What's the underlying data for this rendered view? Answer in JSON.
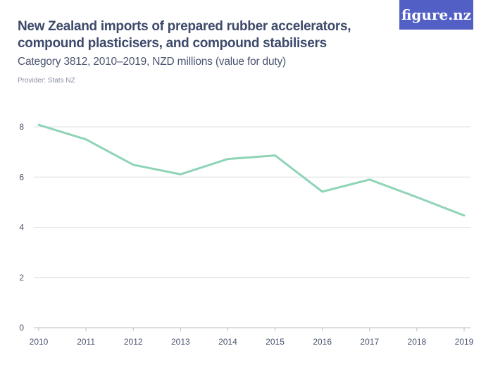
{
  "header": {
    "title": "New Zealand imports of prepared rubber accelerators, compound plasticisers, and compound stabilisers",
    "subtitle": "Category 3812, 2010–2019, NZD millions (value for duty)",
    "provider": "Provider: Stats NZ",
    "logo": "figure.nz"
  },
  "chart_data": {
    "type": "line",
    "title": "New Zealand imports of prepared rubber accelerators, compound plasticisers, and compound stabilisers",
    "subtitle": "Category 3812, 2010–2019, NZD millions (value for duty)",
    "categories": [
      "2010",
      "2011",
      "2012",
      "2013",
      "2014",
      "2015",
      "2016",
      "2017",
      "2018",
      "2019"
    ],
    "values": [
      8.08,
      7.5,
      6.49,
      6.11,
      6.72,
      6.86,
      5.42,
      5.9,
      5.2,
      4.47
    ],
    "ylim": [
      0,
      8
    ],
    "yticks": [
      0,
      2,
      4,
      6,
      8
    ],
    "grid": true,
    "line_color": "#8fd4b6",
    "xlabel": "",
    "ylabel": ""
  }
}
